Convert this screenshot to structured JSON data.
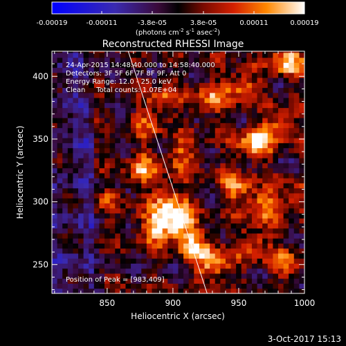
{
  "chart_data": {
    "type": "heatmap",
    "title": "Reconstructed RHESSI Image",
    "xlabel": "Heliocentric X (arcsec)",
    "ylabel": "Heliocentric Y (arcsec)",
    "xlim": [
      808,
      1000
    ],
    "ylim": [
      227,
      420
    ],
    "xticks": [
      850,
      900,
      950,
      1000
    ],
    "yticks": [
      250,
      300,
      350,
      400
    ],
    "colorbar": {
      "tick_labels": [
        "-0.00019",
        "-0.00011",
        "-3.8e-05",
        "3.8e-05",
        "0.00011",
        "0.00019"
      ],
      "range": [
        -0.00019,
        0.00019
      ],
      "units_main": "(photons cm",
      "units_sup1": "-2",
      "units_mid": " s",
      "units_sup2": "-1",
      "units_mid2": " asec",
      "units_sup3": "-2",
      "units_end": ")"
    },
    "annotations": [
      "24-Apr-2015 14:48:40.000 to 14:58:40.000",
      "Detectors: 3F 5F 6F 7F 8F 9F, Att 0",
      "Energy Range: 12.0 - 25.0 keV",
      "Clean     Total counts: 1.07E+04"
    ],
    "peak_label": "Position of Peak = [983,409]",
    "limb_line": [
      [
        866,
        420
      ],
      [
        926,
        227
      ]
    ],
    "bright_regions": [
      {
        "x": 902,
        "y": 282,
        "amp": 1.0
      },
      {
        "x": 885,
        "y": 278,
        "amp": 0.85
      },
      {
        "x": 895,
        "y": 300,
        "amp": 0.7
      },
      {
        "x": 915,
        "y": 262,
        "amp": 0.8
      },
      {
        "x": 930,
        "y": 247,
        "amp": 0.75
      },
      {
        "x": 875,
        "y": 325,
        "amp": 0.65
      },
      {
        "x": 905,
        "y": 335,
        "amp": 0.55
      },
      {
        "x": 960,
        "y": 345,
        "amp": 0.9
      },
      {
        "x": 945,
        "y": 310,
        "amp": 0.7
      },
      {
        "x": 965,
        "y": 295,
        "amp": 0.7
      },
      {
        "x": 925,
        "y": 380,
        "amp": 0.6
      },
      {
        "x": 950,
        "y": 390,
        "amp": 0.65
      },
      {
        "x": 985,
        "y": 410,
        "amp": 0.85
      },
      {
        "x": 980,
        "y": 360,
        "amp": 0.6
      },
      {
        "x": 990,
        "y": 300,
        "amp": 0.5
      },
      {
        "x": 960,
        "y": 265,
        "amp": 0.55
      },
      {
        "x": 985,
        "y": 250,
        "amp": 0.45
      },
      {
        "x": 890,
        "y": 380,
        "amp": 0.5
      },
      {
        "x": 880,
        "y": 360,
        "amp": 0.45
      },
      {
        "x": 850,
        "y": 300,
        "amp": 0.3
      }
    ]
  },
  "timestamp": "3-Oct-2017 15:13"
}
